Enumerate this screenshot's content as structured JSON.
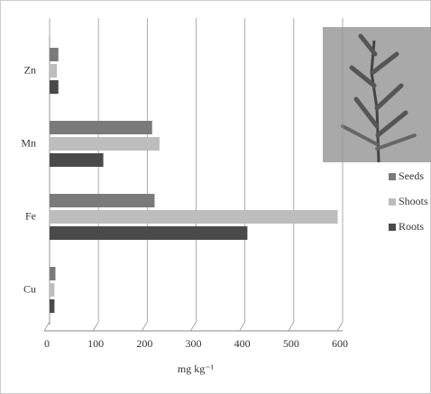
{
  "chart_data": {
    "type": "bar",
    "orientation": "horizontal",
    "categories": [
      "Cu",
      "Fe",
      "Mn",
      "Zn"
    ],
    "series": [
      {
        "name": "Seeds",
        "color": "#7a7a7a",
        "values": [
          12,
          215,
          210,
          18
        ]
      },
      {
        "name": "Shoots",
        "color": "#bdbdbd",
        "values": [
          10,
          590,
          225,
          15
        ]
      },
      {
        "name": "Roots",
        "color": "#4a4a4a",
        "values": [
          10,
          405,
          110,
          18
        ]
      }
    ],
    "xlabel": "mg kg⁻¹",
    "xlim": [
      0,
      600
    ],
    "xticks": [
      0,
      100,
      200,
      300,
      400,
      500,
      600
    ],
    "grid": true
  }
}
